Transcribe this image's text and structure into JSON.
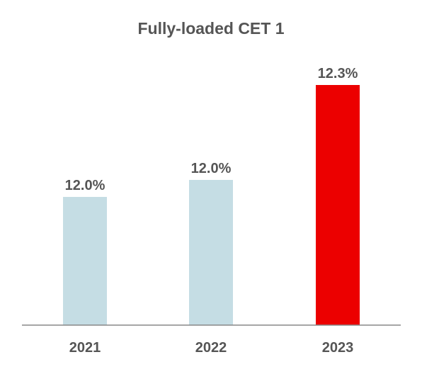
{
  "chart_data": {
    "type": "bar",
    "title": "Fully-loaded CET 1",
    "categories": [
      "2021",
      "2022",
      "2023"
    ],
    "values": [
      12.0,
      12.0,
      12.3
    ],
    "value_labels": [
      "12.0%",
      "12.0%",
      "12.3%"
    ],
    "xlabel": "",
    "ylabel": "",
    "grid": false,
    "legend": "none",
    "colors": {
      "default_bar": "#c5dde4",
      "highlight_bar": "#ec0000",
      "text": "#555555",
      "axis": "#888888"
    },
    "highlight_index": 2
  }
}
